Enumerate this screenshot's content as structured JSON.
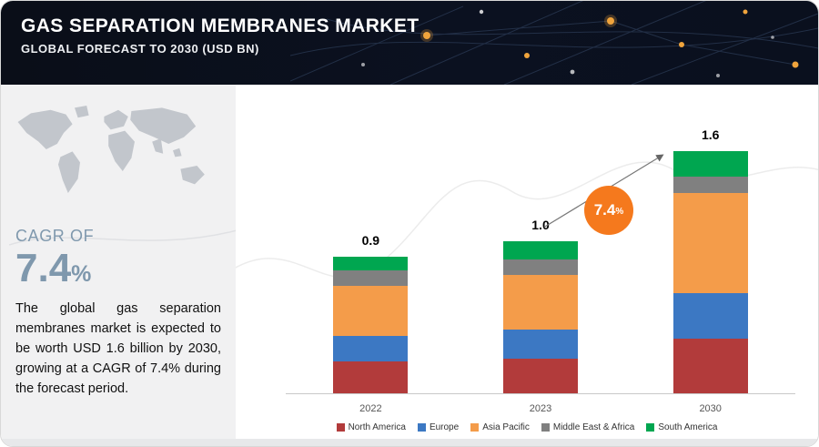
{
  "header": {
    "title": "GAS SEPARATION MEMBRANES MARKET",
    "subtitle": "GLOBAL FORECAST TO 2030 (USD BN)"
  },
  "sidebar": {
    "cagr_label": "CAGR OF",
    "cagr_value": "7.4",
    "cagr_unit": "%",
    "description": "The global gas separation membranes market is expected to be worth USD 1.6 billion by 2030, growing at a CAGR of 7.4% during the forecast period."
  },
  "chart": {
    "growth_value": "7.4",
    "growth_unit": "%"
  },
  "colors": {
    "accent_orange": "#f5791d",
    "cagr_slate": "#7f98ad",
    "header_bg": "#0a0e18"
  },
  "chart_data": {
    "type": "bar",
    "stacked": true,
    "title": "Gas Separation Membranes Market, Global Forecast to 2030 (USD BN)",
    "categories": [
      "2022",
      "2023",
      "2030"
    ],
    "totals": [
      "0.9",
      "1.0",
      "1.6"
    ],
    "series": [
      {
        "name": "North America",
        "color": "#b23b3b",
        "values": [
          0.21,
          0.23,
          0.36
        ]
      },
      {
        "name": "Europe",
        "color": "#3c78c3",
        "values": [
          0.17,
          0.19,
          0.3
        ]
      },
      {
        "name": "Asia Pacific",
        "color": "#f49c4a",
        "values": [
          0.33,
          0.36,
          0.66
        ]
      },
      {
        "name": "Middle East & Africa",
        "color": "#808080",
        "values": [
          0.1,
          0.1,
          0.11
        ]
      },
      {
        "name": "South America",
        "color": "#00a650",
        "values": [
          0.09,
          0.12,
          0.17
        ]
      }
    ],
    "xlabel": "",
    "ylabel": "",
    "ylim": [
      0,
      1.8
    ],
    "grid": false,
    "legend_position": "bottom",
    "annotation": "7.4% growth arrow from 2023 to 2030"
  }
}
